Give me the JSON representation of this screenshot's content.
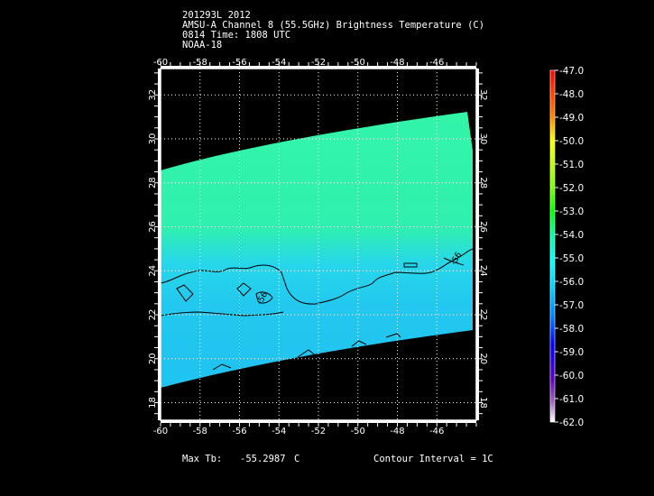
{
  "header": {
    "line1": "201293L 2012",
    "line2": "AMSU-A Channel 8 (55.5GHz) Brightness Temperature (C)",
    "line3": "0814 Time: 1808 UTC",
    "line4": "NOAA-18"
  },
  "map": {
    "lon_ticks": [
      "-60",
      "-58",
      "-56",
      "-54",
      "-52",
      "-50",
      "-48",
      "-46"
    ],
    "lat_ticks": [
      "18",
      "20",
      "22",
      "24",
      "26",
      "28",
      "30",
      "32"
    ],
    "lon_range": [
      -60,
      -44
    ],
    "lat_range": [
      17.2,
      33.2
    ],
    "contour_label": "-56",
    "contour_level": -56
  },
  "colorbar": {
    "labels": [
      "-47.0",
      "-48.0",
      "-49.0",
      "-50.0",
      "-51.0",
      "-52.0",
      "-53.0",
      "-54.0",
      "-55.0",
      "-56.0",
      "-57.0",
      "-58.0",
      "-59.0",
      "-60.0",
      "-61.0",
      "-62.0"
    ],
    "range": [
      -62,
      -47
    ],
    "colors": [
      "#ff0000",
      "#ff8000",
      "#ffff00",
      "#80ff00",
      "#00ff00",
      "#00ffaa",
      "#00ffff",
      "#0080ff",
      "#0000ff",
      "#6000c0",
      "#ffffff"
    ]
  },
  "footer": {
    "max_tb_label": "Max Tb:",
    "max_tb_value": "-55.2987",
    "max_tb_unit": "C",
    "contour_interval": "Contour Interval = 1C"
  }
}
